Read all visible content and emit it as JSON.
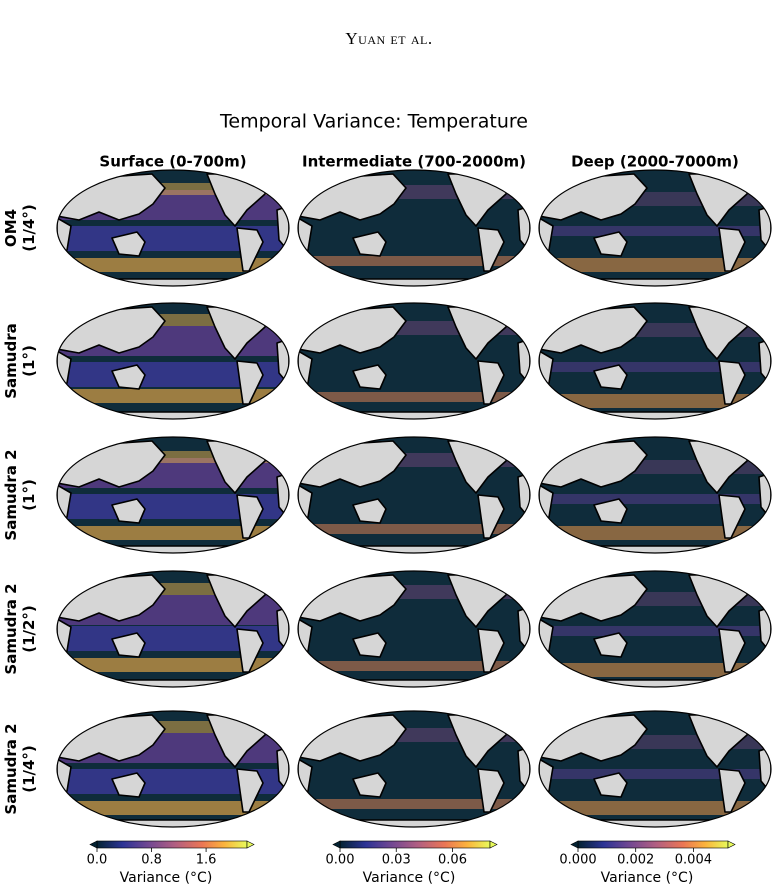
{
  "header": {
    "running_head": "Yuan et al."
  },
  "figure": {
    "title": "Temporal Variance: Temperature",
    "columns": [
      "Surface (0-700m)",
      "Intermediate (700-2000m)",
      "Deep (2000-7000m)"
    ],
    "rows": [
      {
        "name": "OM4",
        "resolution": "(1/4°)"
      },
      {
        "name": "Samudra",
        "resolution": "(1°)"
      },
      {
        "name": "Samudra 2",
        "resolution": "(1°)"
      },
      {
        "name": "Samudra 2",
        "resolution": "(1/2°)"
      },
      {
        "name": "Samudra 2",
        "resolution": "(1/4°)"
      }
    ],
    "colorbars": [
      {
        "label": "Variance (°C)",
        "lim": [
          0,
          2.2
        ],
        "ticks": [
          {
            "value": 0,
            "label": "0.0"
          },
          0.8,
          1.6
        ]
      },
      {
        "label": "Variance (°C)",
        "lim": [
          0,
          0.08
        ],
        "ticks": [
          {
            "value": 0,
            "label": "0.00"
          },
          0.03,
          0.06
        ]
      },
      {
        "label": "Variance (°C)",
        "lim": [
          0,
          0.0052
        ],
        "ticks": [
          {
            "value": 0,
            "label": "0.000"
          },
          0.002,
          0.004
        ]
      }
    ]
  }
}
